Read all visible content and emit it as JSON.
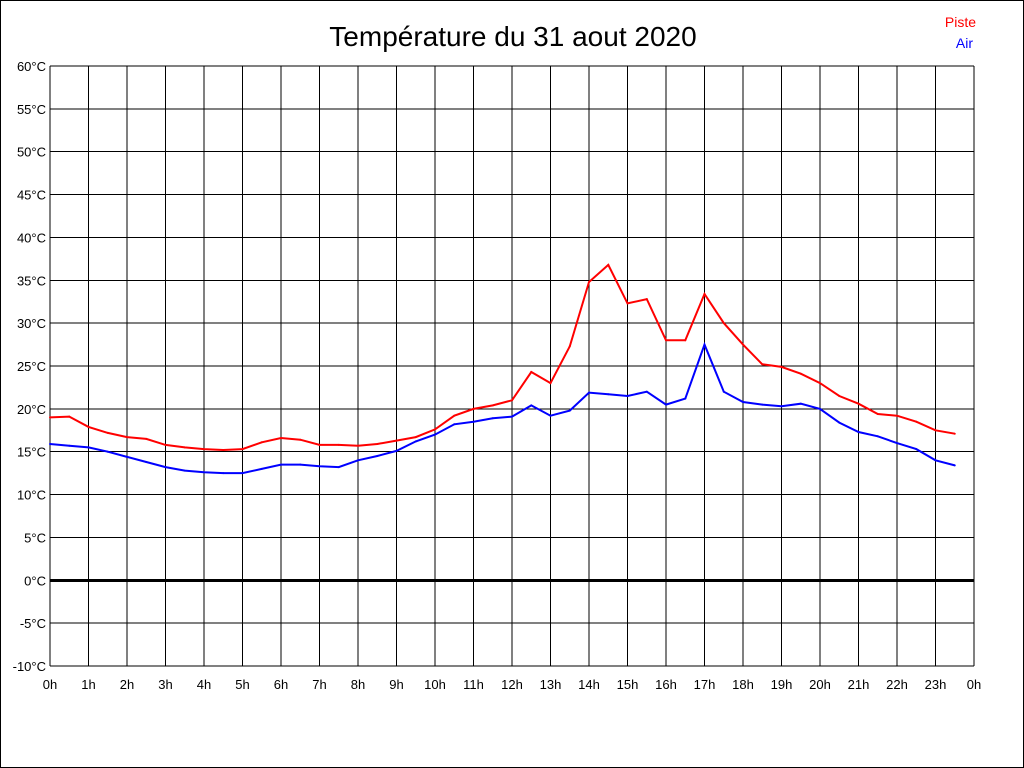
{
  "chart_data": {
    "type": "line",
    "title": "Température du 31 aout 2020",
    "xlabel": "",
    "ylabel": "",
    "ylim": [
      -10,
      60
    ],
    "xlim": [
      0,
      24
    ],
    "grid": true,
    "legend_placement": "top-right",
    "y_ticks": [
      "-10°C",
      "-5°C",
      "0°C",
      "5°C",
      "10°C",
      "15°C",
      "20°C",
      "25°C",
      "30°C",
      "35°C",
      "40°C",
      "45°C",
      "50°C",
      "55°C",
      "60°C"
    ],
    "x_ticks": [
      "0h",
      "1h",
      "2h",
      "3h",
      "4h",
      "5h",
      "6h",
      "7h",
      "8h",
      "9h",
      "10h",
      "11h",
      "12h",
      "13h",
      "14h",
      "15h",
      "16h",
      "17h",
      "18h",
      "19h",
      "20h",
      "21h",
      "22h",
      "23h",
      "0h"
    ],
    "x": [
      0,
      0.5,
      1,
      1.5,
      2,
      2.5,
      3,
      3.5,
      4,
      4.5,
      5,
      5.5,
      6,
      6.5,
      7,
      7.5,
      8,
      8.5,
      9,
      9.5,
      10,
      10.5,
      11,
      11.5,
      12,
      12.5,
      13,
      13.5,
      14,
      14.5,
      15,
      15.5,
      16,
      16.5,
      17,
      17.5,
      18,
      18.5,
      19,
      19.5,
      20,
      20.5,
      21,
      21.5,
      22,
      22.5,
      23,
      23.5
    ],
    "series": [
      {
        "name": "Piste",
        "color": "#ff0000",
        "values": [
          19.0,
          19.1,
          17.9,
          17.2,
          16.7,
          16.5,
          15.8,
          15.5,
          15.3,
          15.2,
          15.3,
          16.1,
          16.6,
          16.4,
          15.8,
          15.8,
          15.7,
          15.9,
          16.3,
          16.7,
          17.6,
          19.2,
          20.0,
          20.4,
          21.0,
          24.3,
          23.0,
          27.3,
          34.8,
          36.8,
          32.3,
          32.8,
          28.0,
          28.0,
          33.4,
          30.0,
          27.5,
          25.2,
          24.9,
          24.1,
          23.0,
          21.5,
          20.6,
          19.4,
          19.2,
          18.5,
          17.5,
          17.1
        ]
      },
      {
        "name": "Air",
        "color": "#0000ff",
        "values": [
          15.9,
          15.7,
          15.5,
          15.0,
          14.4,
          13.8,
          13.2,
          12.8,
          12.6,
          12.5,
          12.5,
          13.0,
          13.5,
          13.5,
          13.3,
          13.2,
          14.0,
          14.5,
          15.1,
          16.2,
          17.0,
          18.2,
          18.5,
          18.9,
          19.1,
          20.4,
          19.2,
          19.8,
          21.9,
          21.7,
          21.5,
          22.0,
          20.5,
          21.2,
          27.5,
          22.0,
          20.8,
          20.5,
          20.3,
          20.6,
          20.0,
          18.4,
          17.3,
          16.8,
          16.0,
          15.3,
          14.0,
          13.4
        ]
      }
    ]
  }
}
